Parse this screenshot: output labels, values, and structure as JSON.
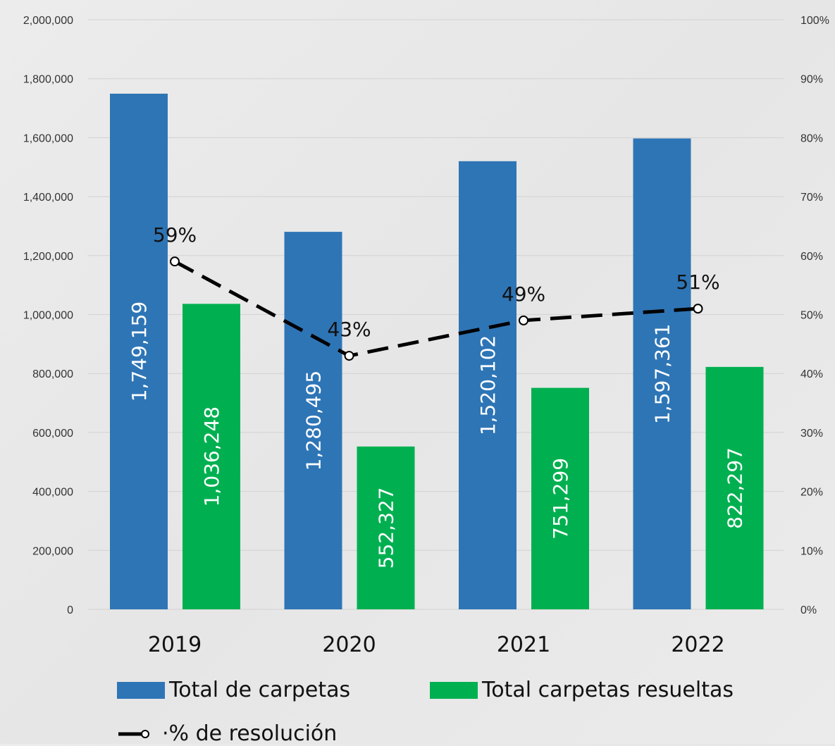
{
  "chart_data": {
    "type": "bar",
    "categories": [
      "2019",
      "2020",
      "2021",
      "2022"
    ],
    "series": [
      {
        "name": "Total de carpetas",
        "values": [
          1749159,
          1280495,
          1520102,
          1597361
        ],
        "labels": [
          "1,749,159",
          "1,280,495",
          "1,520,102",
          "1,597,361"
        ],
        "color": "#2e75b6",
        "axis": "left"
      },
      {
        "name": "Total carpetas resueltas",
        "values": [
          1036248,
          552327,
          751299,
          822297
        ],
        "labels": [
          "1,036,248",
          "552,327",
          "751,299",
          "822,297"
        ],
        "color": "#00b050",
        "axis": "left"
      },
      {
        "name": "·% de resolución",
        "type": "line",
        "values": [
          59,
          43,
          49,
          51
        ],
        "labels": [
          "59%",
          "43%",
          "49%",
          "51%"
        ],
        "color": "#000000",
        "axis": "right",
        "style": "dashed"
      }
    ],
    "ylim": [
      0,
      2000000
    ],
    "y2lim": [
      0,
      100
    ],
    "yticks": [
      "0",
      "200,000",
      "400,000",
      "600,000",
      "800,000",
      "1,000,000",
      "1,200,000",
      "1,400,000",
      "1,600,000",
      "1,800,000",
      "2,000,000"
    ],
    "y2ticks": [
      "0%",
      "10%",
      "20%",
      "30%",
      "40%",
      "50%",
      "60%",
      "70%",
      "80%",
      "90%",
      "100%"
    ],
    "grid": true,
    "legend_position": "bottom"
  }
}
